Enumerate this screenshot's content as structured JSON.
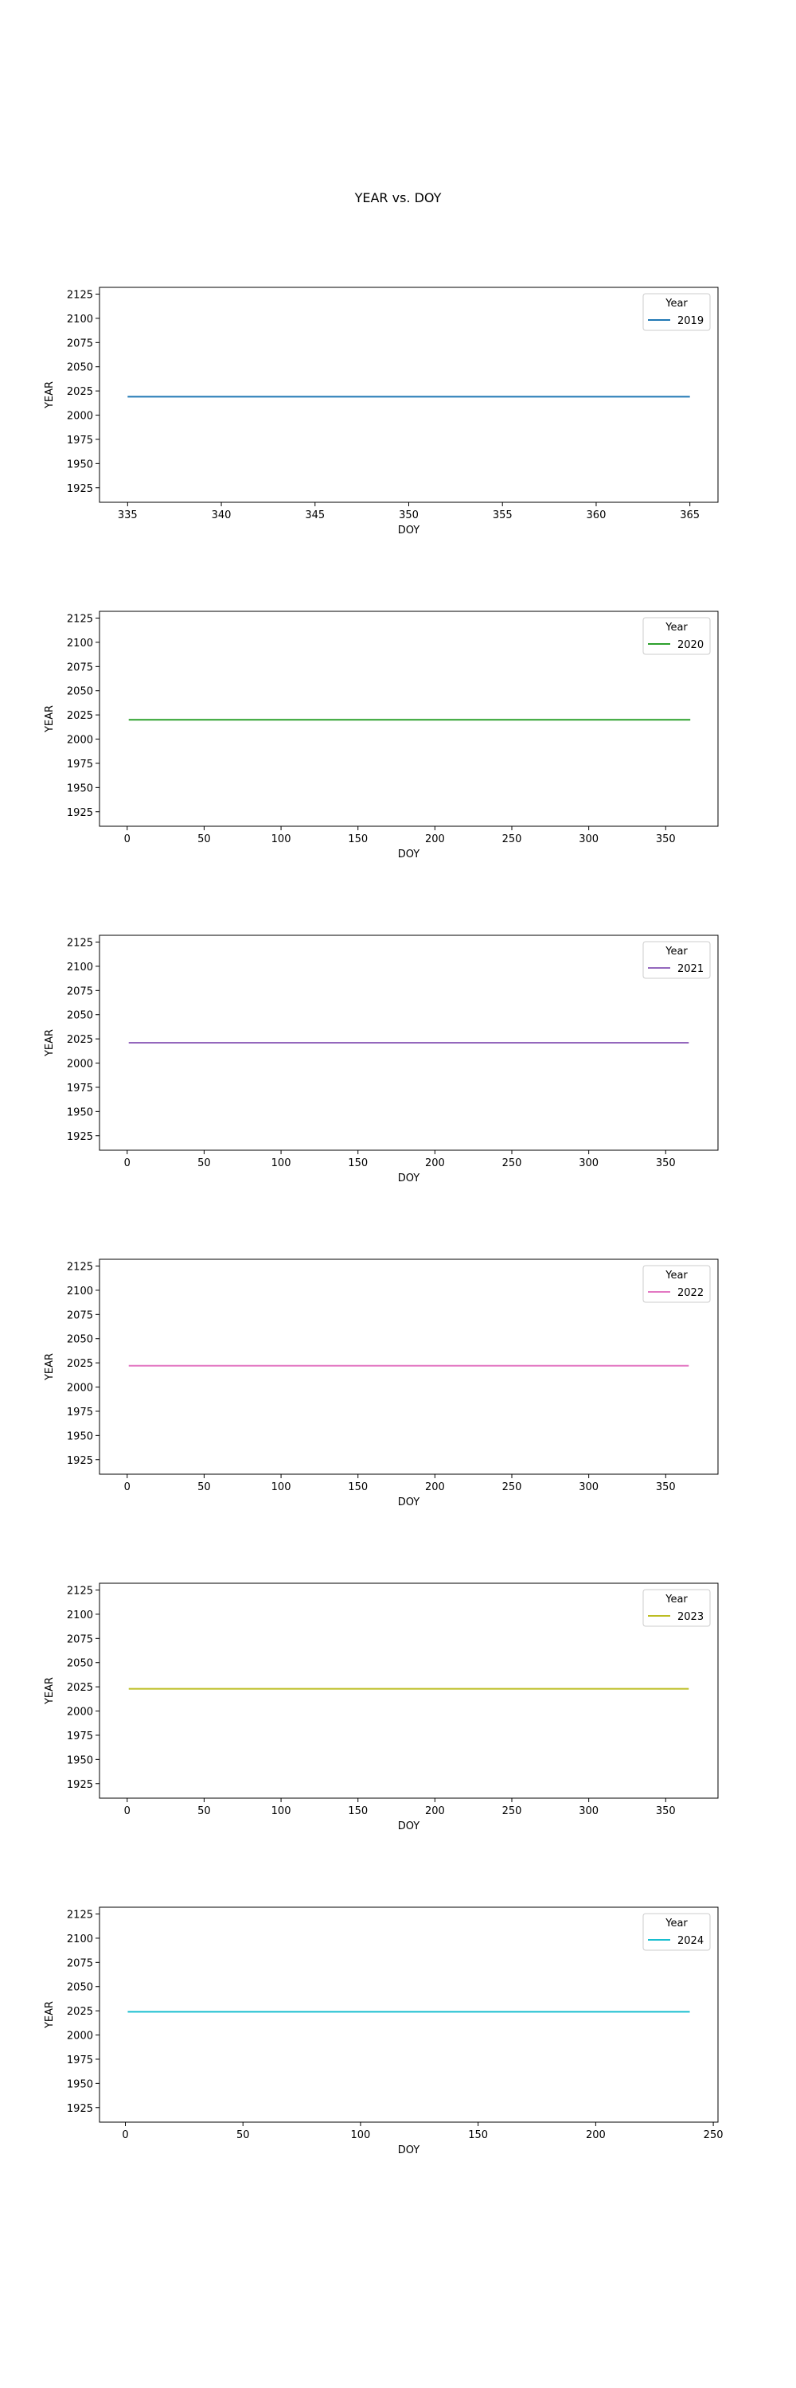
{
  "figure": {
    "title": "YEAR vs. DOY"
  },
  "chart_data": [
    {
      "type": "line",
      "xlabel": "DOY",
      "ylabel": "YEAR",
      "xlim": [
        333.5,
        366.5
      ],
      "ylim": [
        1910,
        2132
      ],
      "xticks": [
        335,
        340,
        345,
        350,
        355,
        360,
        365
      ],
      "yticks": [
        1925,
        1950,
        1975,
        2000,
        2025,
        2050,
        2075,
        2100,
        2125
      ],
      "legend": {
        "title": "Year",
        "position": "top-right"
      },
      "grid": false,
      "series": [
        {
          "name": "2019",
          "color": "#1f77b4",
          "x": [
            335,
            365
          ],
          "y": [
            2019,
            2019
          ]
        }
      ]
    },
    {
      "type": "line",
      "xlabel": "DOY",
      "ylabel": "YEAR",
      "xlim": [
        -18,
        384
      ],
      "ylim": [
        1910,
        2132
      ],
      "xticks": [
        0,
        50,
        100,
        150,
        200,
        250,
        300,
        350
      ],
      "yticks": [
        1925,
        1950,
        1975,
        2000,
        2025,
        2050,
        2075,
        2100,
        2125
      ],
      "legend": {
        "title": "Year",
        "position": "top-right"
      },
      "grid": false,
      "series": [
        {
          "name": "2020",
          "color": "#2ca02c",
          "x": [
            1,
            366
          ],
          "y": [
            2020,
            2020
          ]
        }
      ]
    },
    {
      "type": "line",
      "xlabel": "DOY",
      "ylabel": "YEAR",
      "xlim": [
        -18,
        384
      ],
      "ylim": [
        1910,
        2132
      ],
      "xticks": [
        0,
        50,
        100,
        150,
        200,
        250,
        300,
        350
      ],
      "yticks": [
        1925,
        1950,
        1975,
        2000,
        2025,
        2050,
        2075,
        2100,
        2125
      ],
      "legend": {
        "title": "Year",
        "position": "top-right"
      },
      "grid": false,
      "series": [
        {
          "name": "2021",
          "color": "#9467bd",
          "x": [
            1,
            365
          ],
          "y": [
            2021,
            2021
          ]
        }
      ]
    },
    {
      "type": "line",
      "xlabel": "DOY",
      "ylabel": "YEAR",
      "xlim": [
        -18,
        384
      ],
      "ylim": [
        1910,
        2132
      ],
      "xticks": [
        0,
        50,
        100,
        150,
        200,
        250,
        300,
        350
      ],
      "yticks": [
        1925,
        1950,
        1975,
        2000,
        2025,
        2050,
        2075,
        2100,
        2125
      ],
      "legend": {
        "title": "Year",
        "position": "top-right"
      },
      "grid": false,
      "series": [
        {
          "name": "2022",
          "color": "#e377c2",
          "x": [
            1,
            365
          ],
          "y": [
            2022,
            2022
          ]
        }
      ]
    },
    {
      "type": "line",
      "xlabel": "DOY",
      "ylabel": "YEAR",
      "xlim": [
        -18,
        384
      ],
      "ylim": [
        1910,
        2132
      ],
      "xticks": [
        0,
        50,
        100,
        150,
        200,
        250,
        300,
        350
      ],
      "yticks": [
        1925,
        1950,
        1975,
        2000,
        2025,
        2050,
        2075,
        2100,
        2125
      ],
      "legend": {
        "title": "Year",
        "position": "top-right"
      },
      "grid": false,
      "series": [
        {
          "name": "2023",
          "color": "#bcbd22",
          "x": [
            1,
            365
          ],
          "y": [
            2023,
            2023
          ]
        }
      ]
    },
    {
      "type": "line",
      "xlabel": "DOY",
      "ylabel": "YEAR",
      "xlim": [
        -11,
        252
      ],
      "ylim": [
        1910,
        2132
      ],
      "xticks": [
        0,
        50,
        100,
        150,
        200,
        250
      ],
      "yticks": [
        1925,
        1950,
        1975,
        2000,
        2025,
        2050,
        2075,
        2100,
        2125
      ],
      "legend": {
        "title": "Year",
        "position": "top-right"
      },
      "grid": false,
      "series": [
        {
          "name": "2024",
          "color": "#17becf",
          "x": [
            1,
            240
          ],
          "y": [
            2024,
            2024
          ]
        }
      ]
    }
  ]
}
